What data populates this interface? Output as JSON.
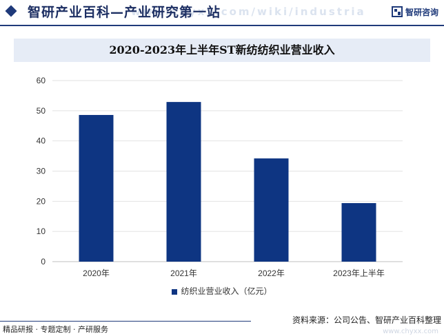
{
  "header": {
    "title": "智研产业百科—产业研究第一站",
    "watermark": "www.chyxx.com/wiki/industria",
    "logo_text": "智研咨询",
    "logo_icon": "zhiyan-logo-icon"
  },
  "colors": {
    "brand": "#1f3a7a",
    "bar": "#0e3582",
    "title_band": "#e6ecf6"
  },
  "footer": {
    "left": "精品研报 · 专题定制 · 产研服务",
    "source": "资料来源：公司公告、智研产业百科整理",
    "watermark": "www.chyxx.com"
  },
  "chart_data": {
    "type": "bar",
    "title": "2020-2023年上半年ST新纺纺织业营业收入",
    "categories": [
      "2020年",
      "2021年",
      "2022年",
      "2023年上半年"
    ],
    "series": [
      {
        "name": "纺织业营业收入（亿元）",
        "values": [
          48.6,
          52.9,
          34.2,
          19.4
        ]
      }
    ],
    "ylim": [
      0,
      60
    ],
    "yticks": [
      0,
      10,
      20,
      30,
      40,
      50,
      60
    ],
    "grid": true,
    "legend_position": "bottom"
  }
}
